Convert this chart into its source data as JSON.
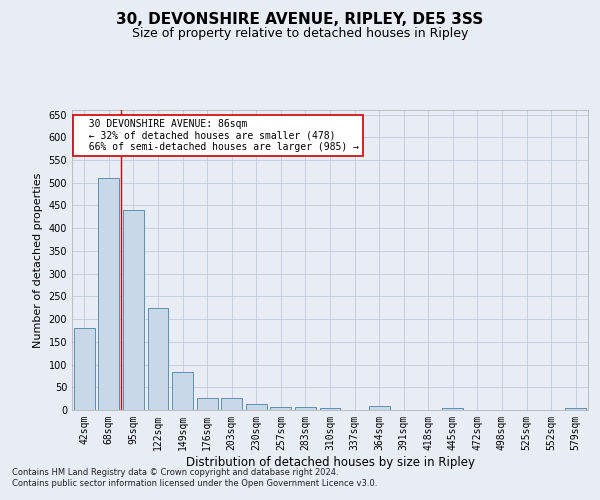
{
  "title": "30, DEVONSHIRE AVENUE, RIPLEY, DE5 3SS",
  "subtitle": "Size of property relative to detached houses in Ripley",
  "xlabel": "Distribution of detached houses by size in Ripley",
  "ylabel": "Number of detached properties",
  "categories": [
    "42sqm",
    "68sqm",
    "95sqm",
    "122sqm",
    "149sqm",
    "176sqm",
    "203sqm",
    "230sqm",
    "257sqm",
    "283sqm",
    "310sqm",
    "337sqm",
    "364sqm",
    "391sqm",
    "418sqm",
    "445sqm",
    "472sqm",
    "498sqm",
    "525sqm",
    "552sqm",
    "579sqm"
  ],
  "values": [
    180,
    510,
    440,
    225,
    83,
    27,
    27,
    13,
    7,
    7,
    5,
    0,
    8,
    0,
    0,
    5,
    0,
    0,
    0,
    0,
    5
  ],
  "bar_color": "#c8d8e8",
  "bar_edge_color": "#6090b0",
  "grid_color": "#b8c4d8",
  "background_color": "#e8ecf4",
  "annotation_box_text": "  30 DEVONSHIRE AVENUE: 86sqm\n  ← 32% of detached houses are smaller (478)\n  66% of semi-detached houses are larger (985) →",
  "annotation_box_color": "#ffffff",
  "annotation_box_edge_color": "#cc0000",
  "red_line_x": 1.5,
  "ylim": [
    0,
    660
  ],
  "yticks": [
    0,
    50,
    100,
    150,
    200,
    250,
    300,
    350,
    400,
    450,
    500,
    550,
    600,
    650
  ],
  "footnote": "Contains HM Land Registry data © Crown copyright and database right 2024.\nContains public sector information licensed under the Open Government Licence v3.0.",
  "title_fontsize": 11,
  "subtitle_fontsize": 9,
  "xlabel_fontsize": 8.5,
  "ylabel_fontsize": 8,
  "tick_fontsize": 7,
  "annotation_fontsize": 7,
  "footnote_fontsize": 6
}
